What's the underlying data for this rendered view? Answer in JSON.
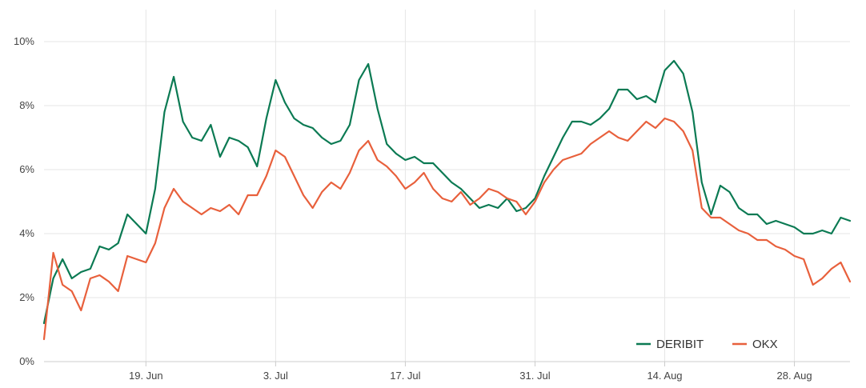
{
  "chart_data": {
    "type": "line",
    "title": "",
    "xlabel": "",
    "ylabel": "",
    "x_axis": {
      "type": "date",
      "range": [
        "2023-06-08",
        "2023-09-03"
      ],
      "ticks": [
        {
          "date": "2023-06-19",
          "label": "19. Jun"
        },
        {
          "date": "2023-07-03",
          "label": "3. Jul"
        },
        {
          "date": "2023-07-17",
          "label": "17. Jul"
        },
        {
          "date": "2023-07-31",
          "label": "31. Jul"
        },
        {
          "date": "2023-08-14",
          "label": "14. Aug"
        },
        {
          "date": "2023-08-28",
          "label": "28. Aug"
        }
      ]
    },
    "y_axis": {
      "unit": "%",
      "range": [
        0,
        11
      ],
      "ticks": [
        {
          "value": 0,
          "label": "0%"
        },
        {
          "value": 2,
          "label": "2%"
        },
        {
          "value": 4,
          "label": "4%"
        },
        {
          "value": 6,
          "label": "6%"
        },
        {
          "value": 8,
          "label": "8%"
        },
        {
          "value": 10,
          "label": "10%"
        }
      ]
    },
    "grid": true,
    "legend": {
      "placement": "bottom-right"
    },
    "series": [
      {
        "name": "DERIBIT",
        "color": "#0b7a53",
        "points": [
          [
            "2023-06-08",
            1.2
          ],
          [
            "2023-06-09",
            2.6
          ],
          [
            "2023-06-10",
            3.2
          ],
          [
            "2023-06-11",
            2.6
          ],
          [
            "2023-06-12",
            2.8
          ],
          [
            "2023-06-13",
            2.9
          ],
          [
            "2023-06-14",
            3.6
          ],
          [
            "2023-06-15",
            3.5
          ],
          [
            "2023-06-16",
            3.7
          ],
          [
            "2023-06-17",
            4.6
          ],
          [
            "2023-06-18",
            4.3
          ],
          [
            "2023-06-19",
            4.0
          ],
          [
            "2023-06-20",
            5.4
          ],
          [
            "2023-06-21",
            7.8
          ],
          [
            "2023-06-22",
            8.9
          ],
          [
            "2023-06-23",
            7.5
          ],
          [
            "2023-06-24",
            7.0
          ],
          [
            "2023-06-25",
            6.9
          ],
          [
            "2023-06-26",
            7.4
          ],
          [
            "2023-06-27",
            6.4
          ],
          [
            "2023-06-28",
            7.0
          ],
          [
            "2023-06-29",
            6.9
          ],
          [
            "2023-06-30",
            6.7
          ],
          [
            "2023-07-01",
            6.1
          ],
          [
            "2023-07-02",
            7.6
          ],
          [
            "2023-07-03",
            8.8
          ],
          [
            "2023-07-04",
            8.1
          ],
          [
            "2023-07-05",
            7.6
          ],
          [
            "2023-07-06",
            7.4
          ],
          [
            "2023-07-07",
            7.3
          ],
          [
            "2023-07-08",
            7.0
          ],
          [
            "2023-07-09",
            6.8
          ],
          [
            "2023-07-10",
            6.9
          ],
          [
            "2023-07-11",
            7.4
          ],
          [
            "2023-07-12",
            8.8
          ],
          [
            "2023-07-13",
            9.3
          ],
          [
            "2023-07-14",
            7.9
          ],
          [
            "2023-07-15",
            6.8
          ],
          [
            "2023-07-16",
            6.5
          ],
          [
            "2023-07-17",
            6.3
          ],
          [
            "2023-07-18",
            6.4
          ],
          [
            "2023-07-19",
            6.2
          ],
          [
            "2023-07-20",
            6.2
          ],
          [
            "2023-07-21",
            5.9
          ],
          [
            "2023-07-22",
            5.6
          ],
          [
            "2023-07-23",
            5.4
          ],
          [
            "2023-07-24",
            5.1
          ],
          [
            "2023-07-25",
            4.8
          ],
          [
            "2023-07-26",
            4.9
          ],
          [
            "2023-07-27",
            4.8
          ],
          [
            "2023-07-28",
            5.1
          ],
          [
            "2023-07-29",
            4.7
          ],
          [
            "2023-07-30",
            4.8
          ],
          [
            "2023-07-31",
            5.1
          ],
          [
            "2023-08-01",
            5.8
          ],
          [
            "2023-08-02",
            6.4
          ],
          [
            "2023-08-03",
            7.0
          ],
          [
            "2023-08-04",
            7.5
          ],
          [
            "2023-08-05",
            7.5
          ],
          [
            "2023-08-06",
            7.4
          ],
          [
            "2023-08-07",
            7.6
          ],
          [
            "2023-08-08",
            7.9
          ],
          [
            "2023-08-09",
            8.5
          ],
          [
            "2023-08-10",
            8.5
          ],
          [
            "2023-08-11",
            8.2
          ],
          [
            "2023-08-12",
            8.3
          ],
          [
            "2023-08-13",
            8.1
          ],
          [
            "2023-08-14",
            9.1
          ],
          [
            "2023-08-15",
            9.4
          ],
          [
            "2023-08-16",
            9.0
          ],
          [
            "2023-08-17",
            7.8
          ],
          [
            "2023-08-18",
            5.6
          ],
          [
            "2023-08-19",
            4.6
          ],
          [
            "2023-08-20",
            5.5
          ],
          [
            "2023-08-21",
            5.3
          ],
          [
            "2023-08-22",
            4.8
          ],
          [
            "2023-08-23",
            4.6
          ],
          [
            "2023-08-24",
            4.6
          ],
          [
            "2023-08-25",
            4.3
          ],
          [
            "2023-08-26",
            4.4
          ],
          [
            "2023-08-27",
            4.3
          ],
          [
            "2023-08-28",
            4.2
          ],
          [
            "2023-08-29",
            4.0
          ],
          [
            "2023-08-30",
            4.0
          ],
          [
            "2023-08-31",
            4.1
          ],
          [
            "2023-09-01",
            4.0
          ],
          [
            "2023-09-02",
            4.5
          ],
          [
            "2023-09-03",
            4.4
          ]
        ]
      },
      {
        "name": "OKX",
        "color": "#e8603c",
        "points": [
          [
            "2023-06-08",
            0.7
          ],
          [
            "2023-06-09",
            3.4
          ],
          [
            "2023-06-10",
            2.4
          ],
          [
            "2023-06-11",
            2.2
          ],
          [
            "2023-06-12",
            1.6
          ],
          [
            "2023-06-13",
            2.6
          ],
          [
            "2023-06-14",
            2.7
          ],
          [
            "2023-06-15",
            2.5
          ],
          [
            "2023-06-16",
            2.2
          ],
          [
            "2023-06-17",
            3.3
          ],
          [
            "2023-06-18",
            3.2
          ],
          [
            "2023-06-19",
            3.1
          ],
          [
            "2023-06-20",
            3.7
          ],
          [
            "2023-06-21",
            4.8
          ],
          [
            "2023-06-22",
            5.4
          ],
          [
            "2023-06-23",
            5.0
          ],
          [
            "2023-06-24",
            4.8
          ],
          [
            "2023-06-25",
            4.6
          ],
          [
            "2023-06-26",
            4.8
          ],
          [
            "2023-06-27",
            4.7
          ],
          [
            "2023-06-28",
            4.9
          ],
          [
            "2023-06-29",
            4.6
          ],
          [
            "2023-06-30",
            5.2
          ],
          [
            "2023-07-01",
            5.2
          ],
          [
            "2023-07-02",
            5.8
          ],
          [
            "2023-07-03",
            6.6
          ],
          [
            "2023-07-04",
            6.4
          ],
          [
            "2023-07-05",
            5.8
          ],
          [
            "2023-07-06",
            5.2
          ],
          [
            "2023-07-07",
            4.8
          ],
          [
            "2023-07-08",
            5.3
          ],
          [
            "2023-07-09",
            5.6
          ],
          [
            "2023-07-10",
            5.4
          ],
          [
            "2023-07-11",
            5.9
          ],
          [
            "2023-07-12",
            6.6
          ],
          [
            "2023-07-13",
            6.9
          ],
          [
            "2023-07-14",
            6.3
          ],
          [
            "2023-07-15",
            6.1
          ],
          [
            "2023-07-16",
            5.8
          ],
          [
            "2023-07-17",
            5.4
          ],
          [
            "2023-07-18",
            5.6
          ],
          [
            "2023-07-19",
            5.9
          ],
          [
            "2023-07-20",
            5.4
          ],
          [
            "2023-07-21",
            5.1
          ],
          [
            "2023-07-22",
            5.0
          ],
          [
            "2023-07-23",
            5.3
          ],
          [
            "2023-07-24",
            4.9
          ],
          [
            "2023-07-25",
            5.1
          ],
          [
            "2023-07-26",
            5.4
          ],
          [
            "2023-07-27",
            5.3
          ],
          [
            "2023-07-28",
            5.1
          ],
          [
            "2023-07-29",
            5.0
          ],
          [
            "2023-07-30",
            4.6
          ],
          [
            "2023-07-31",
            5.0
          ],
          [
            "2023-08-01",
            5.6
          ],
          [
            "2023-08-02",
            6.0
          ],
          [
            "2023-08-03",
            6.3
          ],
          [
            "2023-08-04",
            6.4
          ],
          [
            "2023-08-05",
            6.5
          ],
          [
            "2023-08-06",
            6.8
          ],
          [
            "2023-08-07",
            7.0
          ],
          [
            "2023-08-08",
            7.2
          ],
          [
            "2023-08-09",
            7.0
          ],
          [
            "2023-08-10",
            6.9
          ],
          [
            "2023-08-11",
            7.2
          ],
          [
            "2023-08-12",
            7.5
          ],
          [
            "2023-08-13",
            7.3
          ],
          [
            "2023-08-14",
            7.6
          ],
          [
            "2023-08-15",
            7.5
          ],
          [
            "2023-08-16",
            7.2
          ],
          [
            "2023-08-17",
            6.6
          ],
          [
            "2023-08-18",
            4.8
          ],
          [
            "2023-08-19",
            4.5
          ],
          [
            "2023-08-20",
            4.5
          ],
          [
            "2023-08-21",
            4.3
          ],
          [
            "2023-08-22",
            4.1
          ],
          [
            "2023-08-23",
            4.0
          ],
          [
            "2023-08-24",
            3.8
          ],
          [
            "2023-08-25",
            3.8
          ],
          [
            "2023-08-26",
            3.6
          ],
          [
            "2023-08-27",
            3.5
          ],
          [
            "2023-08-28",
            3.3
          ],
          [
            "2023-08-29",
            3.2
          ],
          [
            "2023-08-30",
            2.4
          ],
          [
            "2023-08-31",
            2.6
          ],
          [
            "2023-09-01",
            2.9
          ],
          [
            "2023-09-02",
            3.1
          ],
          [
            "2023-09-03",
            2.5
          ]
        ]
      }
    ]
  }
}
